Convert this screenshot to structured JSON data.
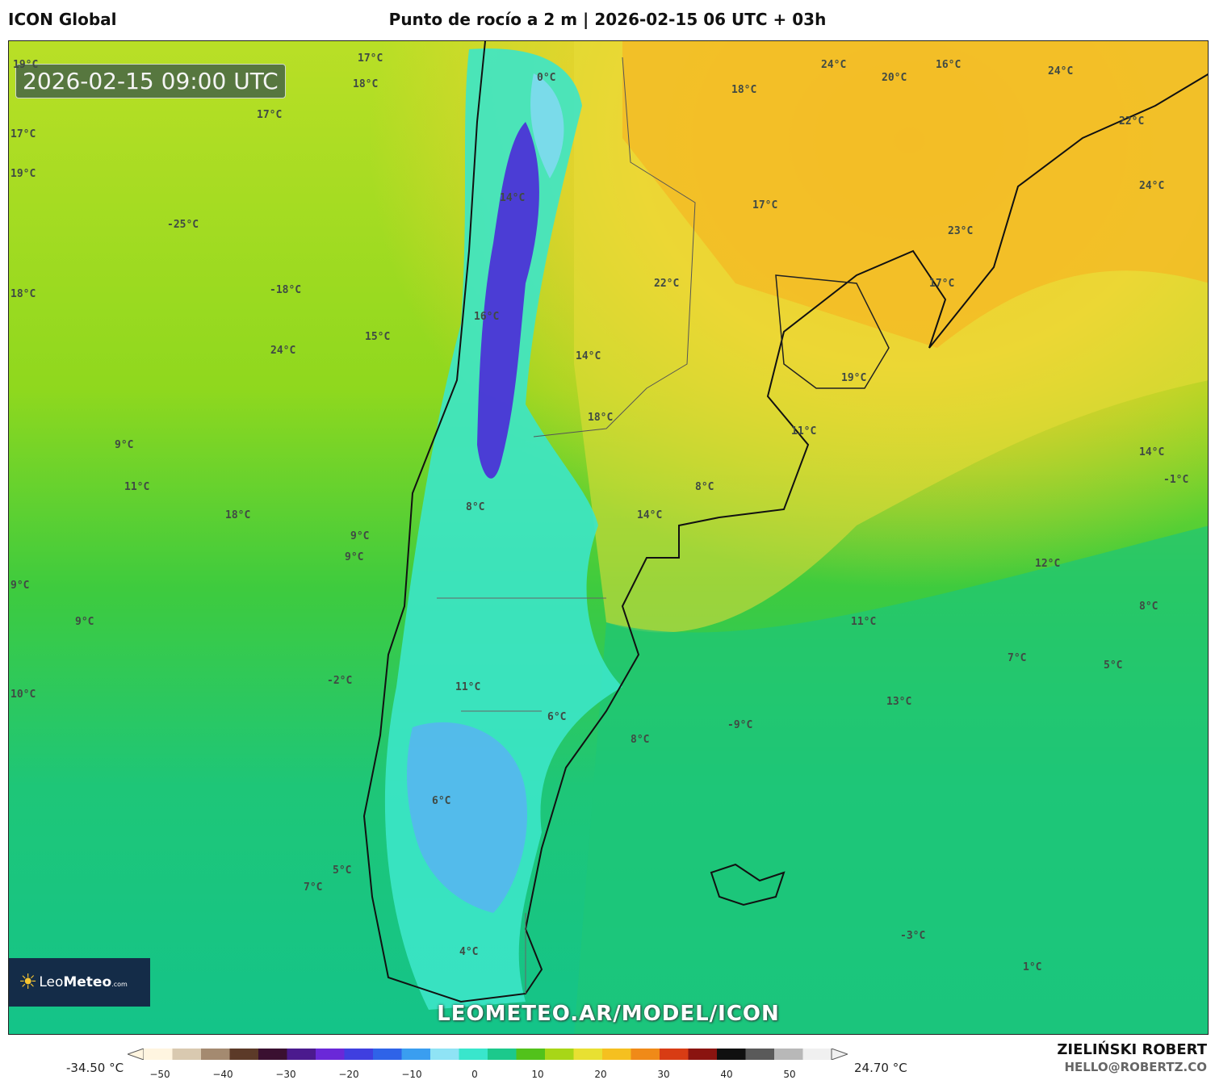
{
  "header": {
    "model": "ICON Global",
    "title": "Punto de rocío a 2 m | 2026-02-15 06 UTC + 03h"
  },
  "map": {
    "valid_time": "2026-02-15 09:00 UTC",
    "watermark": "LEOMETEO.AR/MODEL/ICON",
    "logo": {
      "name_light": "Leo",
      "name_bold": "Meteo",
      "suffix": ".com",
      "icon": "sun-icon"
    },
    "labels": [
      {
        "text": "19°C"
      },
      {
        "text": "17°C"
      },
      {
        "text": "18°C"
      },
      {
        "text": "0°C"
      },
      {
        "text": "17°C"
      },
      {
        "text": "17°C"
      },
      {
        "text": "19°C"
      },
      {
        "text": "18°C"
      },
      {
        "text": "-25°C"
      },
      {
        "text": "14°C"
      },
      {
        "text": "-18°C"
      },
      {
        "text": "16°C"
      },
      {
        "text": "15°C"
      },
      {
        "text": "24°C"
      },
      {
        "text": "18°C"
      },
      {
        "text": "24°C"
      },
      {
        "text": "20°C"
      },
      {
        "text": "16°C"
      },
      {
        "text": "24°C"
      },
      {
        "text": "22°C"
      },
      {
        "text": "24°C"
      },
      {
        "text": "17°C"
      },
      {
        "text": "23°C"
      },
      {
        "text": "22°C"
      },
      {
        "text": "17°C"
      },
      {
        "text": "14°C"
      },
      {
        "text": "19°C"
      },
      {
        "text": "18°C"
      },
      {
        "text": "11°C"
      },
      {
        "text": "9°C"
      },
      {
        "text": "14°C"
      },
      {
        "text": "11°C"
      },
      {
        "text": "-1°C"
      },
      {
        "text": "8°C"
      },
      {
        "text": "18°C"
      },
      {
        "text": "14°C"
      },
      {
        "text": "8°C"
      },
      {
        "text": "9°C"
      },
      {
        "text": "9°C"
      },
      {
        "text": "12°C"
      },
      {
        "text": "9°C"
      },
      {
        "text": "8°C"
      },
      {
        "text": "9°C"
      },
      {
        "text": "11°C"
      },
      {
        "text": "7°C"
      },
      {
        "text": "5°C"
      },
      {
        "text": "-2°C"
      },
      {
        "text": "11°C"
      },
      {
        "text": "10°C"
      },
      {
        "text": "13°C"
      },
      {
        "text": "6°C"
      },
      {
        "text": "8°C"
      },
      {
        "text": "-9°C"
      },
      {
        "text": "6°C"
      },
      {
        "text": "5°C"
      },
      {
        "text": "7°C"
      },
      {
        "text": "-3°C"
      },
      {
        "text": "4°C"
      },
      {
        "text": "1°C"
      }
    ]
  },
  "legend": {
    "min_label": "-34.50 °C",
    "max_label": "24.70 °C",
    "ticks": [
      "−50",
      "−40",
      "−30",
      "−20",
      "−10",
      "0",
      "10",
      "20",
      "30",
      "40",
      "50"
    ],
    "colors": [
      "#fff5e0",
      "#d9c9b0",
      "#a48a70",
      "#5c3a28",
      "#3a1030",
      "#4b1a8e",
      "#6a28d8",
      "#3f3fe0",
      "#2f63e8",
      "#3a9ef0",
      "#8fe3f5",
      "#39e6cc",
      "#1cc98c",
      "#52c21b",
      "#a8d617",
      "#e8e032",
      "#f5c020",
      "#f08a18",
      "#d83c14",
      "#8a1410",
      "#101010",
      "#5a5a5a",
      "#b8b8b8",
      "#f0f0f0"
    ]
  },
  "credits": {
    "author": "ZIELIŃSKI ROBERT",
    "email": "HELLO@ROBERTZ.CO"
  }
}
